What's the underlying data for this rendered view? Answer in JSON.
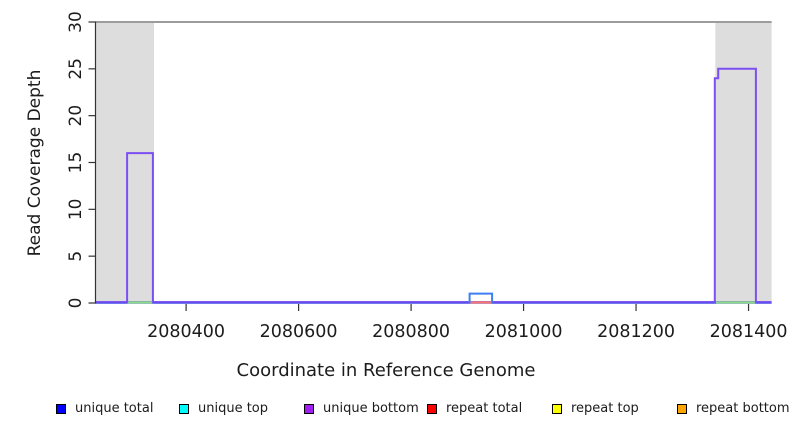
{
  "figure": {
    "x_axis": {
      "label": "Coordinate in Reference Genome"
    },
    "y_axis": {
      "label": "Read Coverage Depth"
    }
  },
  "legend": {
    "items": [
      {
        "label": "unique total",
        "color": "#0000FF"
      },
      {
        "label": "unique top",
        "color": "#00FFFF"
      },
      {
        "label": "unique bottom",
        "color": "#A020F0"
      },
      {
        "label": "repeat total",
        "color": "#FF0000"
      },
      {
        "label": "repeat top",
        "color": "#FFFF00"
      },
      {
        "label": "repeat bottom",
        "color": "#FFA500"
      }
    ]
  },
  "chart_data": {
    "type": "line",
    "subtype": "step-coverage-plot",
    "title": "",
    "xlabel": "Coordinate in Reference Genome",
    "ylabel": "Read Coverage Depth",
    "xlim": [
      2080238,
      2081441
    ],
    "ylim": [
      0,
      30
    ],
    "x_ticks": [
      2080400,
      2080600,
      2080800,
      2081000,
      2081200,
      2081400
    ],
    "y_ticks": [
      0,
      5,
      10,
      15,
      20,
      25,
      30
    ],
    "grid": false,
    "legend_position": "bottom",
    "shaded_regions": [
      {
        "from": 2080238,
        "to": 2080343
      },
      {
        "from": 2081341,
        "to": 2081441
      }
    ],
    "top_boundary_line_y": 30,
    "series": [
      {
        "name": "unique total",
        "color": "#0000FF",
        "baseline_depth": 0,
        "visible_segments": [
          {
            "from": 2080904,
            "to": 2080944,
            "depth": 1
          }
        ]
      },
      {
        "name": "unique top",
        "color": "#00FFFF",
        "baseline_depth": 0,
        "visible_segments": []
      },
      {
        "name": "unique bottom",
        "color": "#A020F0",
        "baseline_depth": 0,
        "visible_segments": [
          {
            "from": 2080295,
            "to": 2080341,
            "depth": 16
          },
          {
            "from": 2081340,
            "to": 2081346,
            "depth": 24
          },
          {
            "from": 2081346,
            "to": 2081413,
            "depth": 25
          }
        ]
      },
      {
        "name": "repeat total",
        "color": "#FF0000",
        "baseline_depth": 0,
        "visible_segments": []
      },
      {
        "name": "repeat top",
        "color": "#FFFF00",
        "baseline_depth": 0,
        "visible_segments": []
      },
      {
        "name": "repeat bottom",
        "color": "#FFA500",
        "baseline_depth": 0,
        "visible_segments": []
      }
    ],
    "render_steps": [
      {
        "series": "unique bottom",
        "stroke": "#7c4ff2",
        "points": [
          [
            2080295,
            0
          ],
          [
            2080295,
            16
          ],
          [
            2080341,
            16
          ],
          [
            2080341,
            0
          ]
        ]
      },
      {
        "series": "unique total",
        "stroke": "#3f7ff2",
        "points": [
          [
            2080904,
            0
          ],
          [
            2080904,
            1
          ],
          [
            2080944,
            1
          ],
          [
            2080944,
            0
          ]
        ]
      },
      {
        "series": "unique bottom",
        "stroke": "#7c4ff2",
        "points": [
          [
            2081340,
            0
          ],
          [
            2081340,
            24
          ],
          [
            2081346,
            24
          ],
          [
            2081346,
            25
          ],
          [
            2081413,
            25
          ],
          [
            2081413,
            0
          ]
        ]
      }
    ],
    "baseline_overlays": [
      {
        "color": "#8cd98c",
        "from": 2080296,
        "to": 2080340
      },
      {
        "color": "#ef7878",
        "from": 2080905,
        "to": 2080943
      },
      {
        "color": "#8cd98c",
        "from": 2081342,
        "to": 2081412
      }
    ],
    "colors": {
      "shaded_region": "#dddddd",
      "top_boundary_line": "#9c9c9c",
      "baseline_purple": "#8055f0",
      "baseline_blue": "#4848e8",
      "axis": "#333333",
      "text": "#1c1c1c"
    }
  }
}
